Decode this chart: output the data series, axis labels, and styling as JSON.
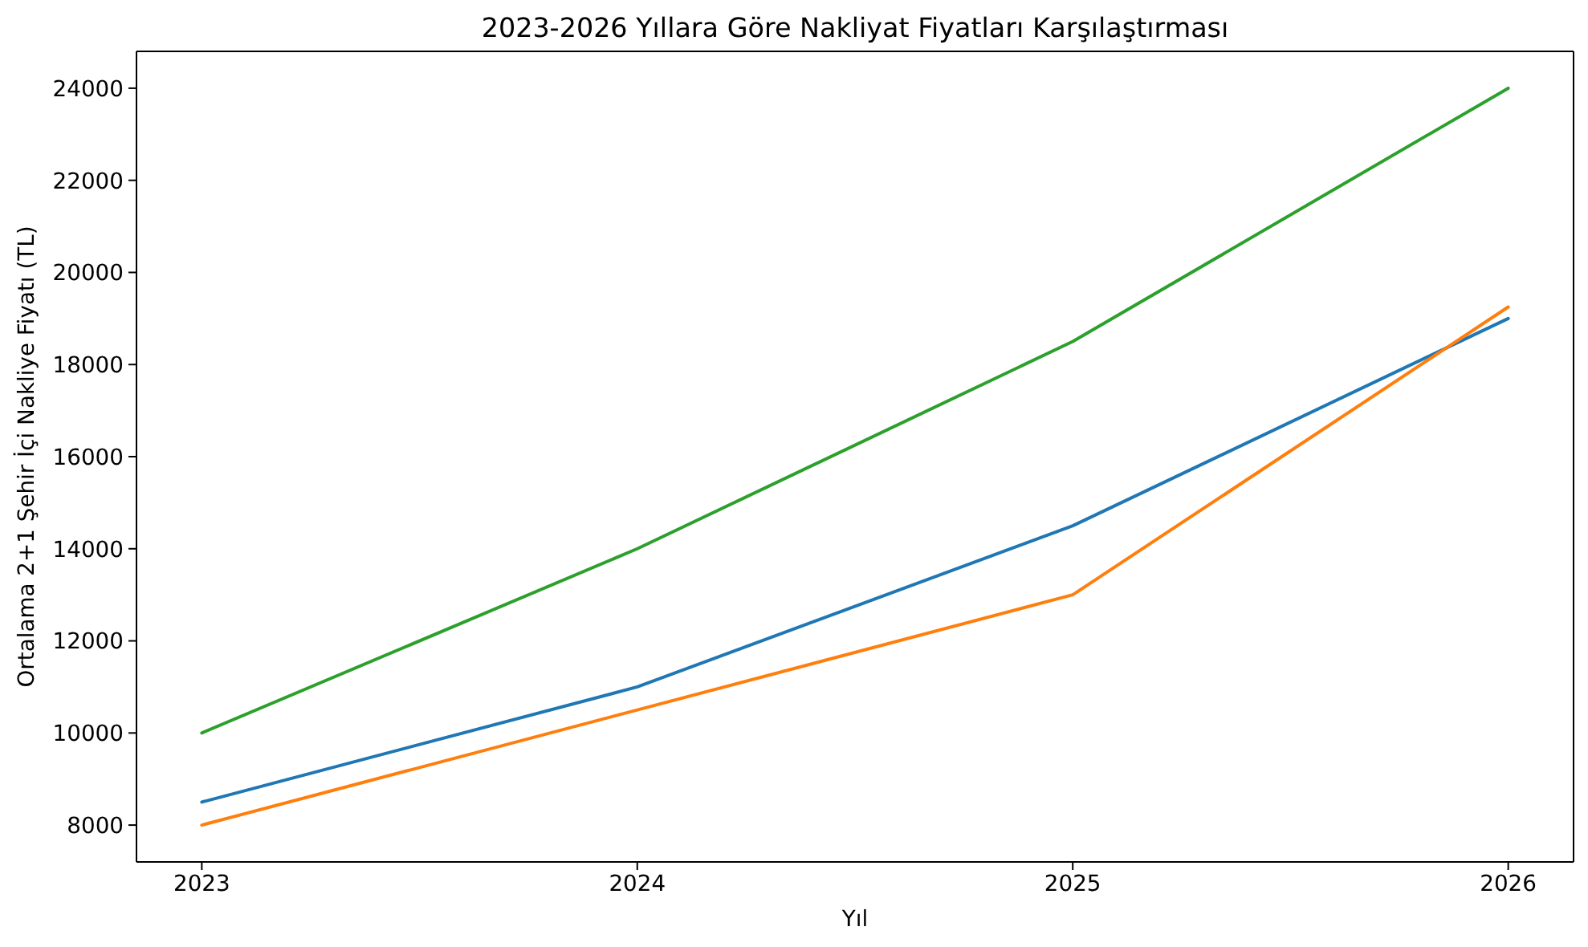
{
  "chart_data": {
    "type": "line",
    "title": "2023-2026 Yıllara Göre Nakliyat Fiyatları Karşılaştırması",
    "xlabel": "Yıl",
    "ylabel": "Ortalama 2+1 Şehir İçi Nakliye Fiyatı (TL)",
    "x": [
      2023,
      2024,
      2025,
      2026
    ],
    "series": [
      {
        "color": "#1f77b4",
        "values": [
          8500,
          11000,
          14500,
          19000
        ]
      },
      {
        "color": "#ff7f0e",
        "values": [
          8000,
          10500,
          13000,
          19250
        ]
      },
      {
        "color": "#2ca02c",
        "values": [
          10000,
          14000,
          18500,
          24000
        ]
      }
    ],
    "xlim": [
      2022.85,
      2026.15
    ],
    "xticks": [
      2023,
      2024,
      2025,
      2026
    ],
    "ylim": [
      7200,
      24800
    ],
    "yticks": [
      8000,
      10000,
      12000,
      14000,
      16000,
      18000,
      20000,
      22000,
      24000
    ],
    "line_style": "solid"
  }
}
